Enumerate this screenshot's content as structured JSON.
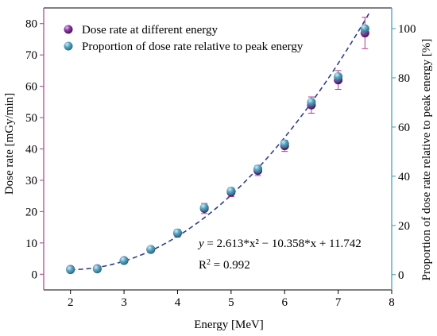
{
  "chart_data": {
    "type": "scatter",
    "xlabel": "Energy [MeV]",
    "ylabel_left": "Dose rate [mGy/min]",
    "ylabel_right": "Proportion of dose rate relative to peak energy [%]",
    "xlim": [
      1.5,
      8
    ],
    "ylim_left": [
      -5,
      85
    ],
    "ylim_right": [
      -6.2,
      108.4
    ],
    "xticks": [
      2,
      3,
      4,
      5,
      6,
      7,
      8
    ],
    "yticks_left": [
      0,
      10,
      20,
      30,
      40,
      50,
      60,
      70,
      80
    ],
    "yticks_right": [
      0,
      20,
      40,
      60,
      80,
      100
    ],
    "grid": false,
    "legend_position": "top-left",
    "colors": {
      "dose": "#7b2a8e",
      "proportion": "#4a9ab5",
      "fit": "#2e3f8f",
      "left_axis": "#b03a8e",
      "right_axis": "#3a9bb8"
    },
    "series": [
      {
        "name": "Dose rate at different energy",
        "axis": "left",
        "x": [
          2,
          2.5,
          3,
          3.5,
          4,
          4.5,
          5,
          5.5,
          6,
          6.5,
          7,
          7.5
        ],
        "y": [
          1.6,
          1.8,
          4.4,
          7.9,
          13.1,
          21.0,
          26.2,
          33.1,
          41.0,
          54.0,
          62.0,
          77.0
        ],
        "error": [
          0.4,
          0.4,
          0.6,
          0.9,
          1.2,
          1.6,
          1.4,
          1.6,
          1.8,
          2.6,
          3.0,
          5.0
        ]
      },
      {
        "name": "Proportion of dose rate relative to peak energy",
        "axis": "right",
        "x": [
          2,
          2.5,
          3,
          3.5,
          4,
          4.5,
          5,
          5.5,
          6,
          6.5,
          7,
          7.5
        ],
        "y": [
          2.0,
          2.3,
          5.7,
          10.3,
          17.0,
          27.3,
          34.0,
          43.0,
          53.2,
          70.1,
          80.5,
          100.0
        ]
      }
    ],
    "fit": {
      "a": 2.613,
      "b": -10.358,
      "c": 11.742,
      "x_range": [
        2,
        7.6
      ],
      "equation_text": "2.613*x² − 10.358*x + 11.742",
      "r2_text": "= 0.992"
    }
  }
}
